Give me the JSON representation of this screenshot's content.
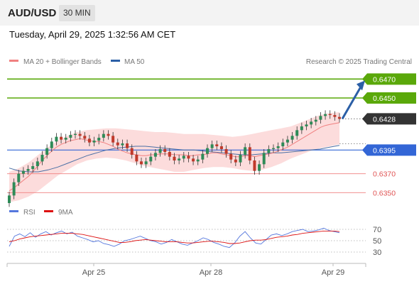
{
  "header": {
    "symbol": "AUD/USD",
    "timeframe": "30 MIN",
    "datetime": "Tuesday, April 29, 2025 1:32:56 AM CET"
  },
  "legend": {
    "ma20_label": "MA 20 + Bollinger Bands",
    "ma50_label": "MA 50",
    "credit": "Research © 2025 Trading Central",
    "rsi_label": "RSI",
    "rsi_ma_label": "9MA"
  },
  "colors": {
    "green": "#5aa80a",
    "blue": "#3366d6",
    "red": "#f08080",
    "candle_up": "#2e8b57",
    "candle_down": "#c0392b",
    "band": "#fcd6d6",
    "current": "#333333",
    "rsi": "#5577dd",
    "rsi_ma": "#dd1111"
  },
  "chart_data": {
    "type": "candlestick",
    "symbol": "AUD/USD",
    "interval": "30 MIN",
    "price_range": [
      0.6342,
      0.648
    ],
    "x_labels": [
      "Apr 25",
      "Apr 28",
      "Apr 29"
    ],
    "levels": [
      {
        "value": "0.6470",
        "type": "resistance"
      },
      {
        "value": "0.6450",
        "type": "resistance"
      },
      {
        "value": "0.6428",
        "type": "current"
      },
      {
        "value": "0.6395",
        "type": "pivot"
      },
      {
        "value": "0.6370",
        "type": "support"
      },
      {
        "value": "0.6350",
        "type": "support"
      }
    ],
    "close_path": [
      0.6347,
      0.6361,
      0.637,
      0.6373,
      0.6375,
      0.6378,
      0.6383,
      0.639,
      0.6397,
      0.6404,
      0.6409,
      0.6406,
      0.6408,
      0.6411,
      0.6412,
      0.641,
      0.6407,
      0.6403,
      0.6405,
      0.6408,
      0.6412,
      0.641,
      0.6403,
      0.64,
      0.6402,
      0.6397,
      0.639,
      0.6383,
      0.638,
      0.6383,
      0.6388,
      0.6392,
      0.6396,
      0.6393,
      0.6388,
      0.6384,
      0.6386,
      0.6389,
      0.6386,
      0.6383,
      0.6385,
      0.6391,
      0.6397,
      0.6401,
      0.6399,
      0.6396,
      0.6391,
      0.6385,
      0.6382,
      0.639,
      0.6398,
      0.6384,
      0.6373,
      0.638,
      0.6392,
      0.6396,
      0.6397,
      0.6399,
      0.6403,
      0.6406,
      0.641,
      0.6416,
      0.642,
      0.6422,
      0.6425,
      0.6427,
      0.6431,
      0.6433,
      0.6432,
      0.643,
      0.6428
    ],
    "ma20": [
      0.6352,
      0.6355,
      0.6359,
      0.6363,
      0.6367,
      0.6372,
      0.6378,
      0.6384,
      0.6389,
      0.6394,
      0.6398,
      0.6401,
      0.6403,
      0.6405,
      0.6406,
      0.6407,
      0.6406,
      0.6405,
      0.6404,
      0.6404,
      0.6403,
      0.6401,
      0.6399,
      0.6396,
      0.6394,
      0.6392,
      0.6391,
      0.639,
      0.6389,
      0.6389,
      0.639,
      0.639,
      0.6391,
      0.6391,
      0.6391,
      0.639,
      0.639,
      0.639,
      0.6389,
      0.6389,
      0.639,
      0.639,
      0.6391,
      0.6392,
      0.6392,
      0.6391,
      0.639,
      0.6389,
      0.6388,
      0.6388,
      0.6389,
      0.6389,
      0.6388,
      0.6389,
      0.639,
      0.6391,
      0.6392,
      0.6394,
      0.6396,
      0.6398,
      0.6401,
      0.6404,
      0.6407,
      0.641,
      0.6413,
      0.6416,
      0.6419,
      0.6421,
      0.6422,
      0.6423,
      0.6424
    ],
    "ma50": [
      0.6376,
      0.6373,
      0.6372,
      0.6372,
      0.6374,
      0.6377,
      0.6381,
      0.6385,
      0.6389,
      0.6392,
      0.6395,
      0.6397,
      0.6398,
      0.6399,
      0.6399,
      0.6398,
      0.6397,
      0.6396,
      0.6395,
      0.6395,
      0.6394,
      0.6393,
      0.6392,
      0.6391,
      0.639,
      0.639,
      0.6391,
      0.6392,
      0.6392,
      0.6393,
      0.6394,
      0.6395,
      0.6396,
      0.6398,
      0.64
    ],
    "bb_upper": [
      0.6372,
      0.6376,
      0.6382,
      0.639,
      0.6398,
      0.6405,
      0.641,
      0.6414,
      0.6416,
      0.6417,
      0.6418,
      0.6418,
      0.6417,
      0.6416,
      0.6415,
      0.6414,
      0.6414,
      0.6413,
      0.6412,
      0.6412,
      0.6412,
      0.6411,
      0.641,
      0.6409,
      0.641,
      0.6412,
      0.6414,
      0.6416,
      0.6418,
      0.642,
      0.6424,
      0.6428,
      0.6432,
      0.6434,
      0.6435
    ],
    "bb_lower": [
      0.634,
      0.6342,
      0.6346,
      0.6352,
      0.636,
      0.6368,
      0.6374,
      0.638,
      0.6384,
      0.6386,
      0.6387,
      0.6386,
      0.6384,
      0.6381,
      0.6378,
      0.6376,
      0.6374,
      0.6372,
      0.6372,
      0.6374,
      0.6376,
      0.6377,
      0.6377,
      0.6376,
      0.6374,
      0.6373,
      0.6374,
      0.6377,
      0.6381,
      0.6386,
      0.639,
      0.6394,
      0.6397,
      0.6399,
      0.6401
    ],
    "projection": {
      "from": 0.6428,
      "to": 0.647
    },
    "rsi": {
      "levels": [
        "70",
        "50",
        "30"
      ],
      "values": [
        40,
        58,
        62,
        57,
        64,
        56,
        62,
        66,
        60,
        64,
        67,
        62,
        65,
        58,
        55,
        52,
        48,
        50,
        45,
        43,
        40,
        44,
        50,
        52,
        55,
        58,
        54,
        50,
        48,
        44,
        47,
        52,
        48,
        44,
        42,
        46,
        50,
        55,
        52,
        47,
        44,
        40,
        38,
        46,
        58,
        66,
        55,
        46,
        44,
        52,
        60,
        62,
        59,
        62,
        66,
        68,
        70,
        66,
        67,
        69,
        72,
        68,
        66,
        64
      ],
      "ma9": [
        48,
        50,
        53,
        55,
        57,
        58,
        59,
        60,
        61,
        62,
        63,
        63,
        63,
        62,
        61,
        59,
        57,
        55,
        53,
        51,
        49,
        47,
        47,
        48,
        50,
        51,
        52,
        51,
        50,
        49,
        48,
        48,
        48,
        47,
        46,
        46,
        47,
        48,
        49,
        49,
        48,
        47,
        45,
        45,
        46,
        48,
        50,
        51,
        51,
        52,
        54,
        56,
        57,
        58,
        60,
        61,
        63,
        64,
        65,
        66,
        67,
        67,
        67,
        66
      ]
    }
  }
}
